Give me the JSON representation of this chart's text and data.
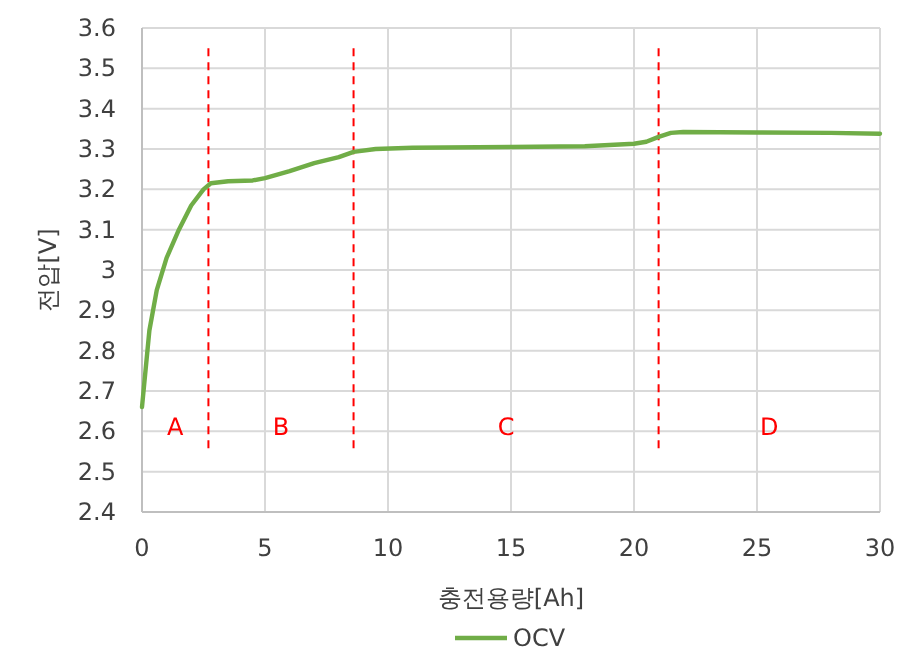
{
  "chart_data": {
    "type": "line",
    "xlabel": "충전용량[Ah]",
    "ylabel": "전압[V]",
    "xlim": [
      0,
      30
    ],
    "xticks": [
      0,
      5,
      10,
      15,
      20,
      25,
      30
    ],
    "ylim": [
      2.4,
      3.6
    ],
    "yticks": [
      2.4,
      2.5,
      2.6,
      2.7,
      2.8,
      2.9,
      3,
      3.1,
      3.2,
      3.3,
      3.4,
      3.5,
      3.6
    ],
    "grid": true,
    "legend": "bottom",
    "marker": "none",
    "line_style": "solid",
    "series": [
      {
        "name": "OCV",
        "color": "#70ad47",
        "x": [
          0,
          0.3,
          0.6,
          1,
          1.5,
          2,
          2.5,
          2.8,
          3.5,
          4.5,
          5,
          6,
          7,
          8,
          8.6,
          9.5,
          11,
          15,
          18,
          20,
          20.5,
          21,
          21.5,
          22,
          25,
          28,
          30
        ],
        "values": [
          2.66,
          2.85,
          2.95,
          3.03,
          3.1,
          3.16,
          3.2,
          3.215,
          3.22,
          3.222,
          3.228,
          3.245,
          3.265,
          3.28,
          3.293,
          3.3,
          3.303,
          3.305,
          3.307,
          3.313,
          3.318,
          3.33,
          3.34,
          3.342,
          3.341,
          3.34,
          3.338
        ]
      }
    ],
    "ref_lines": [
      {
        "axis": "x",
        "value": 2.7,
        "label": null,
        "color": "#ff0000",
        "line_style": "dashed"
      },
      {
        "axis": "x",
        "value": 8.6,
        "label": null,
        "color": "#ff0000",
        "line_style": "dashed"
      },
      {
        "axis": "x",
        "value": 21,
        "label": null,
        "color": "#ff0000",
        "line_style": "dashed"
      }
    ],
    "annotations": [
      "A",
      "B",
      "C",
      "D"
    ]
  }
}
